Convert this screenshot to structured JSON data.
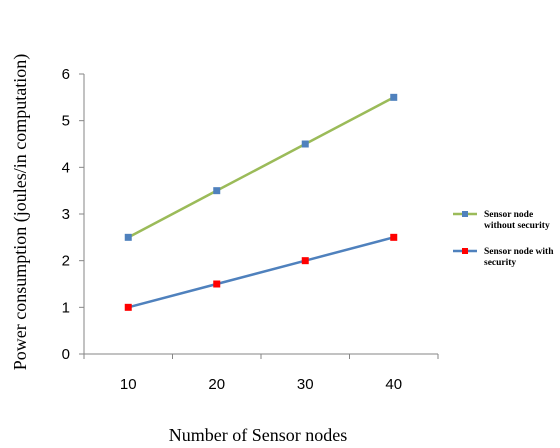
{
  "chart_data": {
    "type": "line",
    "xlabel": "Number of Sensor nodes",
    "ylabel": "Power consumption  (joules/in computation)",
    "categories": [
      "10",
      "20",
      "30",
      "40"
    ],
    "ylim": [
      0,
      6
    ],
    "yticks": [
      "0",
      "1",
      "2",
      "3",
      "4",
      "5",
      "6"
    ],
    "grid": false,
    "legend_position": "right",
    "series": [
      {
        "name_lines": [
          "Sensor node",
          "without security"
        ],
        "values": [
          2.5,
          3.5,
          4.5,
          5.5
        ],
        "line_color": "#9bbb59",
        "marker_color": "#4f81bd"
      },
      {
        "name_lines": [
          "Sensor node with",
          "security"
        ],
        "values": [
          1.0,
          1.5,
          2.0,
          2.5
        ],
        "line_color": "#4f81bd",
        "marker_color": "#ff0000"
      }
    ]
  }
}
